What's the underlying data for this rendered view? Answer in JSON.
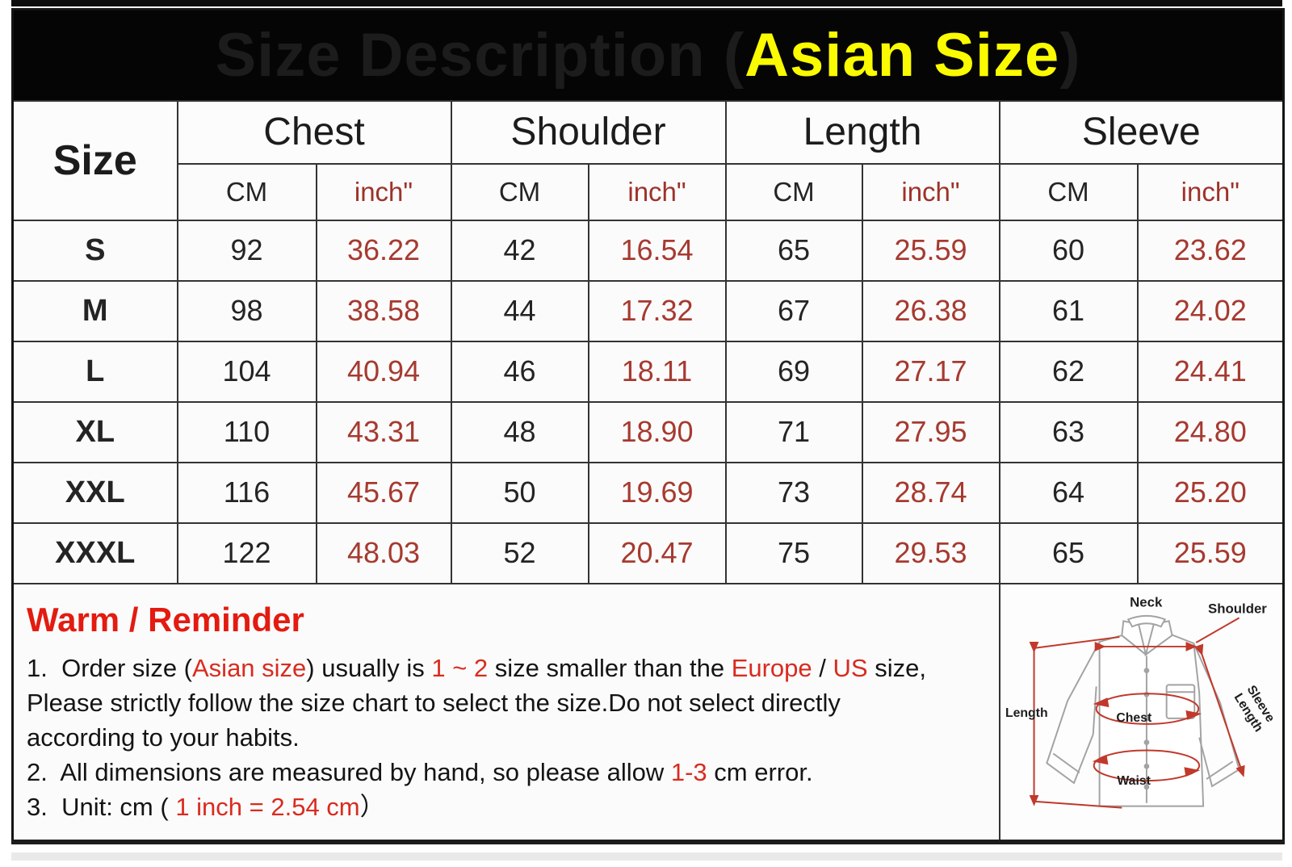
{
  "title": {
    "prefix": "Size Description (",
    "highlight": "Asian Size",
    "suffix": ")"
  },
  "colors": {
    "title_bg": "#050505",
    "title_text": "#ffffff",
    "title_highlight": "#fafa00",
    "table_inch_red": "#a63a30",
    "reminder_red": "#d92b1f",
    "diagram_line_red": "#c0392b"
  },
  "table": {
    "size_header": "Size",
    "groups": [
      {
        "label": "Chest"
      },
      {
        "label": "Shoulder"
      },
      {
        "label": "Length"
      },
      {
        "label": "Sleeve"
      }
    ],
    "unit_cm": "CM",
    "unit_inch": "inch\"",
    "rows": [
      {
        "size": "S",
        "values": [
          "92",
          "36.22",
          "42",
          "16.54",
          "65",
          "25.59",
          "60",
          "23.62"
        ]
      },
      {
        "size": "M",
        "values": [
          "98",
          "38.58",
          "44",
          "17.32",
          "67",
          "26.38",
          "61",
          "24.02"
        ]
      },
      {
        "size": "L",
        "values": [
          "104",
          "40.94",
          "46",
          "18.11",
          "69",
          "27.17",
          "62",
          "24.41"
        ]
      },
      {
        "size": "XL",
        "values": [
          "110",
          "43.31",
          "48",
          "18.90",
          "71",
          "27.95",
          "63",
          "24.80"
        ]
      },
      {
        "size": "XXL",
        "values": [
          "116",
          "45.67",
          "50",
          "19.69",
          "73",
          "28.74",
          "64",
          "25.20"
        ]
      },
      {
        "size": "XXXL",
        "values": [
          "122",
          "48.03",
          "52",
          "20.47",
          "75",
          "29.53",
          "65",
          "25.59"
        ]
      }
    ]
  },
  "reminder": {
    "heading": "Warm / Reminder",
    "lines": [
      [
        {
          "t": "1.  Order size (",
          "c": "black"
        },
        {
          "t": "Asian size",
          "c": "red"
        },
        {
          "t": ") usually is ",
          "c": "black"
        },
        {
          "t": "1 ~ 2",
          "c": "red"
        },
        {
          "t": " size smaller than the ",
          "c": "black"
        },
        {
          "t": "Europe",
          "c": "red"
        },
        {
          "t": " / ",
          "c": "black"
        },
        {
          "t": "US",
          "c": "red"
        },
        {
          "t": " size,",
          "c": "black"
        }
      ],
      [
        {
          "t": "Please strictly follow the size chart to select the size.Do not select directly",
          "c": "black"
        }
      ],
      [
        {
          "t": "according to your habits.",
          "c": "black"
        }
      ],
      [
        {
          "t": "2.  All dimensions are measured by hand, so please allow ",
          "c": "black"
        },
        {
          "t": "1-3",
          "c": "red"
        },
        {
          "t": " cm error.",
          "c": "black"
        }
      ],
      [
        {
          "t": "3.  Unit: cm ( ",
          "c": "black"
        },
        {
          "t": "1 inch = 2.54 cm",
          "c": "red"
        },
        {
          "t": "）",
          "c": "black"
        }
      ]
    ]
  },
  "diagram": {
    "labels": {
      "neck": "Neck",
      "shoulder": "Shoulder",
      "sleeve_line1": "Sleeve",
      "sleeve_line2": "Length",
      "length": "Length",
      "chest": "Chest",
      "waist": "Waist"
    }
  }
}
